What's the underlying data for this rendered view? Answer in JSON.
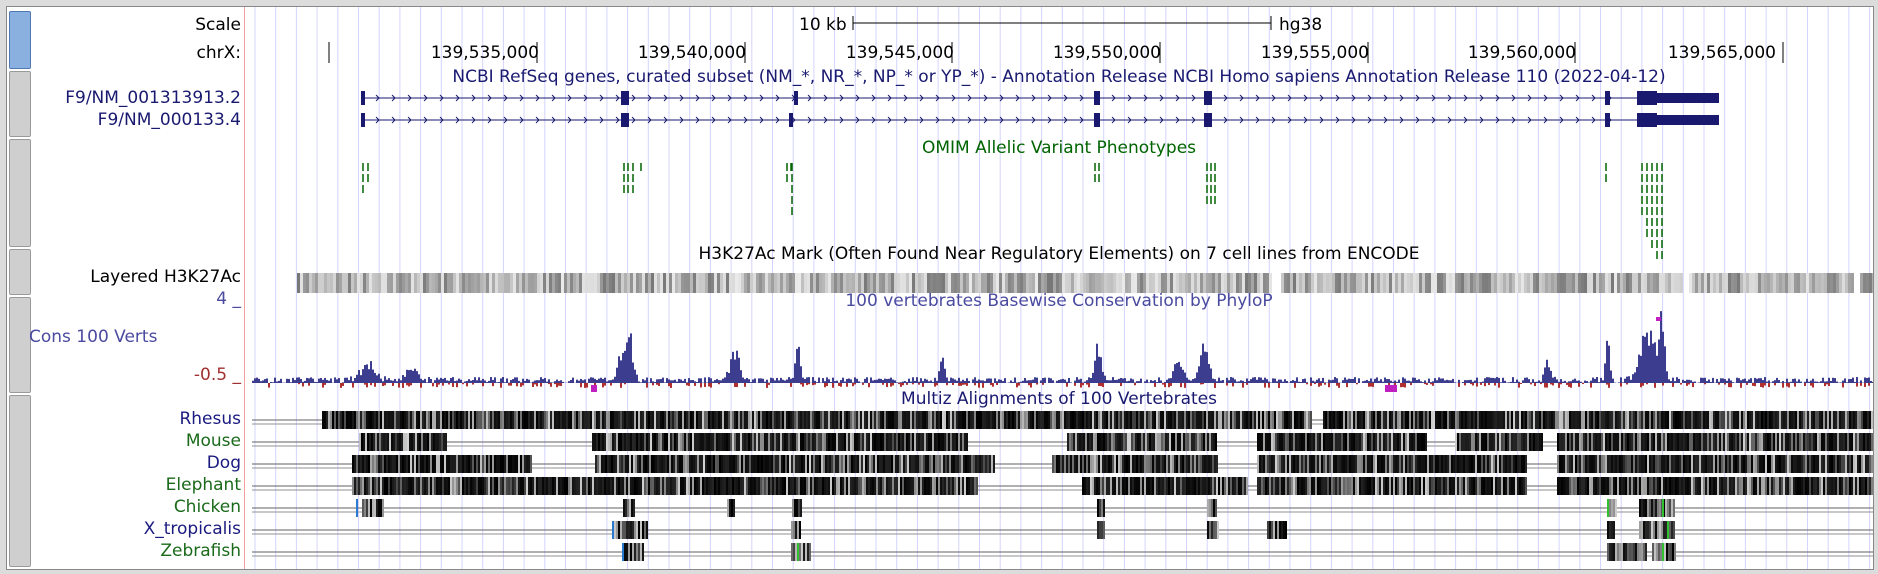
{
  "colors": {
    "gene": "#191970",
    "omim": "#006400",
    "cons_pos": "#3d3d8f",
    "cons_neg": "#b03030",
    "blue_label": "#1a1a80",
    "green_label": "#1a6a1a",
    "grid": "#d4d4ff",
    "red_label": "#a03030",
    "cons_label": "#4a4aa0"
  },
  "ruler": {
    "scale_label": "Scale",
    "chrom_label": "chrX:",
    "scale_bar_text": "10 kb",
    "assembly": "hg38",
    "ticks": [
      "139,535,000",
      "139,540,000",
      "139,545,000",
      "139,550,000",
      "139,555,000",
      "139,560,000",
      "139,565,000"
    ]
  },
  "refseq": {
    "title": "NCBI RefSeq genes, curated subset (NM_*, NR_*, NP_* or YP_*) - Annotation Release NCBI Homo sapiens Annotation Release 110 (2022-04-12)",
    "transcripts": [
      "F9/NM_001313913.2",
      "F9/NM_000133.4"
    ]
  },
  "omim": {
    "title": "OMIM Allelic Variant Phenotypes"
  },
  "h3k27ac": {
    "title": "H3K27Ac Mark (Often Found Near Regulatory Elements) on 7 cell lines from ENCODE",
    "label": "Layered H3K27Ac"
  },
  "phylop": {
    "title": "100 vertebrates Basewise Conservation by PhyloP",
    "label": "Cons 100 Verts",
    "max_label": "4 _",
    "min_label": "-0.5 _"
  },
  "multiz": {
    "title": "Multiz Alignments of 100 Vertebrates",
    "species": [
      {
        "name": "Rhesus",
        "color": "blue"
      },
      {
        "name": "Mouse",
        "color": "green"
      },
      {
        "name": "Dog",
        "color": "blue"
      },
      {
        "name": "Elephant",
        "color": "green"
      },
      {
        "name": "Chicken",
        "color": "green"
      },
      {
        "name": "X_tropicalis",
        "color": "blue"
      },
      {
        "name": "Zebrafish",
        "color": "green"
      }
    ]
  }
}
